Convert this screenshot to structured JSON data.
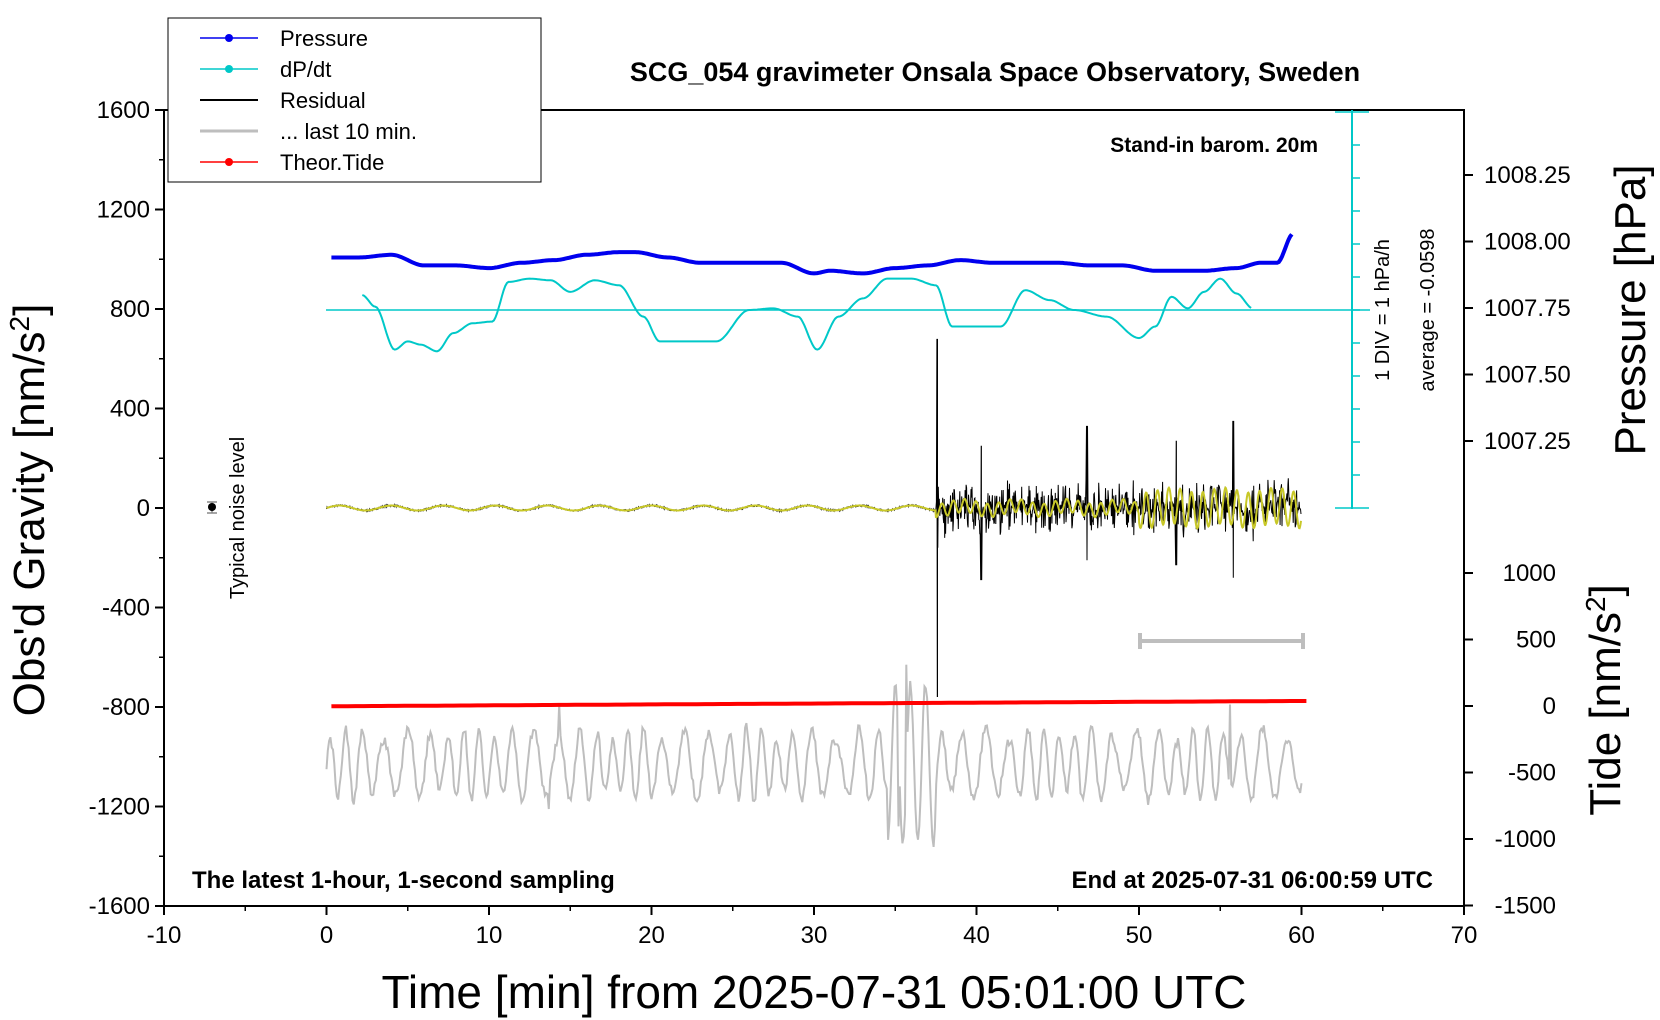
{
  "chart_data": {
    "type": "line",
    "title": "SCG_054 gravimeter Onsala Space Observatory, Sweden",
    "xlabel": "Time [min] from 2025-07-31 05:01:00 UTC",
    "ylabel_left_main": "Obs'd Gravity [nm/s",
    "ylabel_left_sup": "2",
    "ylabel_left_end": "]",
    "ylabel_right_top": "Pressure [hPa]",
    "ylabel_right_bottom_main": "Tide [nm/s",
    "ylabel_right_bottom_sup": "2",
    "ylabel_right_bottom_end": "]",
    "xlim": [
      -10,
      70
    ],
    "ylim_left": [
      -1600,
      1600
    ],
    "x_ticks": [
      "-10",
      "0",
      "10",
      "20",
      "30",
      "40",
      "50",
      "60",
      "70"
    ],
    "y_ticks_left": [
      "1600",
      "1200",
      "800",
      "400",
      "0",
      "-400",
      "-800",
      "-1200",
      "-1600"
    ],
    "pressure_ticks": [
      "1008.25",
      "1008.00",
      "1007.75",
      "1007.50",
      "1007.25"
    ],
    "pressure_tick_values": [
      1008.25,
      1008.0,
      1007.75,
      1007.5,
      1007.25
    ],
    "tide_ticks": [
      "1000",
      "500",
      "0",
      "-500",
      "-1000",
      "-1500"
    ],
    "tide_tick_values": [
      1000,
      500,
      0,
      -500,
      -1000,
      -1500
    ],
    "legend": [
      {
        "name": "Pressure",
        "color": "#0000ee",
        "marker": true
      },
      {
        "name": "dP/dt",
        "color": "#00c8c8",
        "marker": true
      },
      {
        "name": "Residual",
        "color": "#000000",
        "marker": false
      },
      {
        "name": "... last 10 min.",
        "color": "#bebebe",
        "marker": false
      },
      {
        "name": "Theor.Tide",
        "color": "#ff0000",
        "marker": true
      }
    ],
    "annotations": {
      "stand_in": "Stand-in barom. 20m",
      "div": "1 DIV = 1 hPa/h",
      "average": "average = -0.0598",
      "noise": "Typical noise level",
      "latest": "The latest 1-hour, 1-second sampling",
      "end": "End at 2025-07-31 06:00:59 UTC"
    },
    "series": [
      {
        "name": "Pressure",
        "color": "#0000ee",
        "x": [
          0.3,
          2,
          4,
          6,
          8,
          10,
          12,
          14,
          16,
          18,
          19,
          21,
          23,
          25,
          28,
          30,
          31,
          33,
          35,
          37,
          39,
          41,
          43,
          45,
          47,
          49,
          51,
          52.5,
          54,
          56,
          57.5,
          58.5,
          59.5
        ],
        "values": [
          1007.94,
          1007.94,
          1007.95,
          1007.91,
          1007.91,
          1007.9,
          1007.92,
          1007.93,
          1007.95,
          1007.96,
          1007.96,
          1007.94,
          1007.92,
          1007.92,
          1007.92,
          1007.88,
          1007.89,
          1007.88,
          1007.9,
          1007.91,
          1007.93,
          1007.92,
          1007.92,
          1007.92,
          1007.91,
          1007.91,
          1007.89,
          1007.89,
          1007.89,
          1007.9,
          1007.92,
          1007.92,
          1008.03
        ]
      },
      {
        "name": "dP/dt",
        "color": "#00c8c8",
        "x": [
          2.2,
          3,
          4.2,
          5,
          5.8,
          6.8,
          7.8,
          9,
          10.2,
          11.2,
          12.5,
          13.8,
          15,
          16.5,
          18,
          19.5,
          20.5,
          22,
          24,
          26,
          27.5,
          29,
          30.2,
          31.5,
          33,
          34.5,
          36,
          37.5,
          38.5,
          40,
          41.5,
          43,
          44.5,
          46,
          48,
          50,
          51,
          52,
          53,
          54,
          55,
          56,
          57
        ],
        "values": [
          0.45,
          0.1,
          -1.2,
          -0.95,
          -1.05,
          -1.25,
          -0.7,
          -0.4,
          -0.35,
          0.85,
          0.95,
          0.9,
          0.55,
          0.9,
          0.75,
          -0.2,
          -0.95,
          -0.95,
          -0.95,
          0.0,
          0.05,
          -0.2,
          -1.2,
          -0.2,
          0.35,
          0.95,
          0.95,
          0.75,
          -0.5,
          -0.5,
          -0.5,
          0.6,
          0.3,
          0.0,
          -0.2,
          -0.85,
          -0.5,
          0.4,
          0.05,
          0.55,
          0.95,
          0.5,
          0.05
        ]
      },
      {
        "name": "Residual",
        "color": "#000000",
        "x_range": [
          0,
          60
        ],
        "features": [
          {
            "x": 37.6,
            "values": [
              -160,
              680,
              -760
            ]
          },
          {
            "x": 40.3,
            "values": [
              -290,
              250
            ]
          },
          {
            "x": 46.8,
            "values": [
              -210,
              330
            ]
          },
          {
            "x": 52.3,
            "values": [
              -230,
              270
            ]
          },
          {
            "x": 55.8,
            "values": [
              -280,
              350
            ]
          }
        ]
      },
      {
        "name": "... last 10 min.",
        "color": "#bebebe",
        "x_range": [
          0,
          60
        ],
        "peaks": [
          {
            "x": 14.3,
            "value": -790
          },
          {
            "x": 35.7,
            "value": -630
          },
          {
            "x": 35.2,
            "value": -1280
          },
          {
            "x": 55.6,
            "value": -790
          },
          {
            "x": 13.7,
            "value": -1210
          }
        ]
      },
      {
        "name": "Theor.Tide",
        "color": "#ff0000",
        "x": [
          0.3,
          20,
          40,
          60.5
        ],
        "values": [
          -2,
          12,
          25,
          38
        ]
      }
    ]
  }
}
